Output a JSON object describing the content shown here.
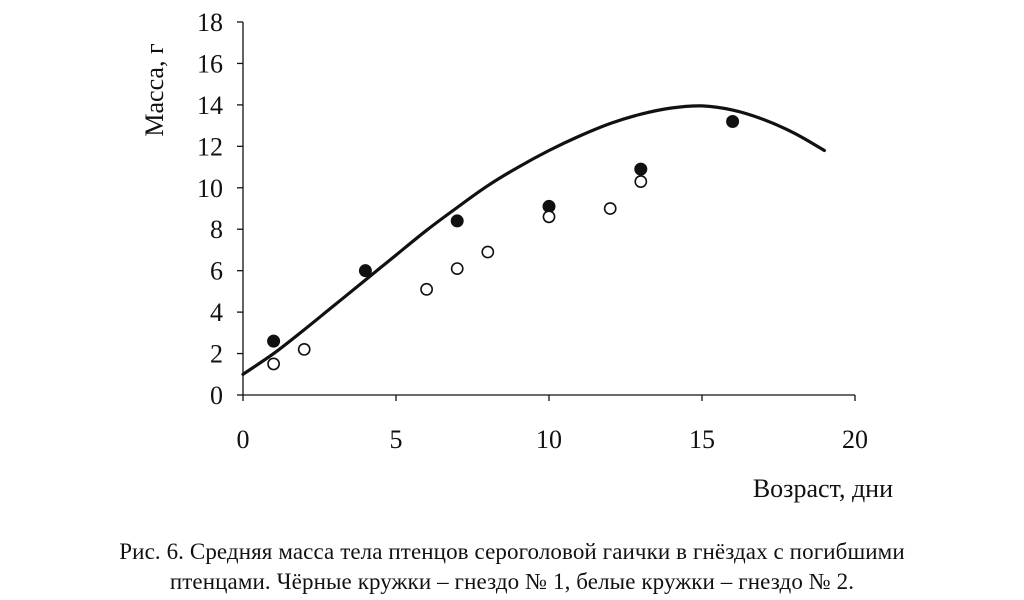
{
  "chart_data": {
    "type": "scatter",
    "xlabel": "Возраст, дни",
    "ylabel": "Масса, г",
    "xlim": [
      0,
      20
    ],
    "ylim": [
      0,
      18
    ],
    "x_ticks": [
      "0",
      "5",
      "10",
      "15",
      "20"
    ],
    "y_ticks": [
      "0",
      "2",
      "4",
      "6",
      "8",
      "10",
      "12",
      "14",
      "16",
      "18"
    ],
    "grid": false,
    "series": [
      {
        "marker": "filled-circle",
        "color": "#111111",
        "points": [
          [
            1,
            2.6
          ],
          [
            4,
            6.0
          ],
          [
            7,
            8.4
          ],
          [
            10,
            9.1
          ],
          [
            13,
            10.9
          ],
          [
            16,
            13.2
          ]
        ]
      },
      {
        "marker": "open-circle",
        "color": "#111111",
        "points": [
          [
            1,
            1.5
          ],
          [
            2,
            2.2
          ],
          [
            6,
            5.1
          ],
          [
            7,
            6.1
          ],
          [
            8,
            6.9
          ],
          [
            10,
            8.6
          ],
          [
            12,
            9.0
          ],
          [
            13,
            10.3
          ]
        ]
      },
      {
        "marker": "line",
        "color": "#111111",
        "points": [
          [
            0,
            1.0
          ],
          [
            1,
            2.0
          ],
          [
            2,
            3.15
          ],
          [
            3,
            4.35
          ],
          [
            4,
            5.55
          ],
          [
            5,
            6.75
          ],
          [
            6,
            7.95
          ],
          [
            7,
            9.05
          ],
          [
            8,
            10.1
          ],
          [
            9,
            11.0
          ],
          [
            10,
            11.8
          ],
          [
            11,
            12.5
          ],
          [
            12,
            13.1
          ],
          [
            13,
            13.55
          ],
          [
            14,
            13.85
          ],
          [
            15,
            13.95
          ],
          [
            16,
            13.75
          ],
          [
            17,
            13.3
          ],
          [
            18,
            12.65
          ],
          [
            19,
            11.8
          ]
        ]
      }
    ]
  },
  "caption": {
    "line1": "Рис. 6. Средняя масса тела птенцов сероголовой гаички в гнёздах с погибшими",
    "line2": "птенцами. Чёрные кружки – гнездо № 1, белые кружки – гнездо № 2."
  }
}
